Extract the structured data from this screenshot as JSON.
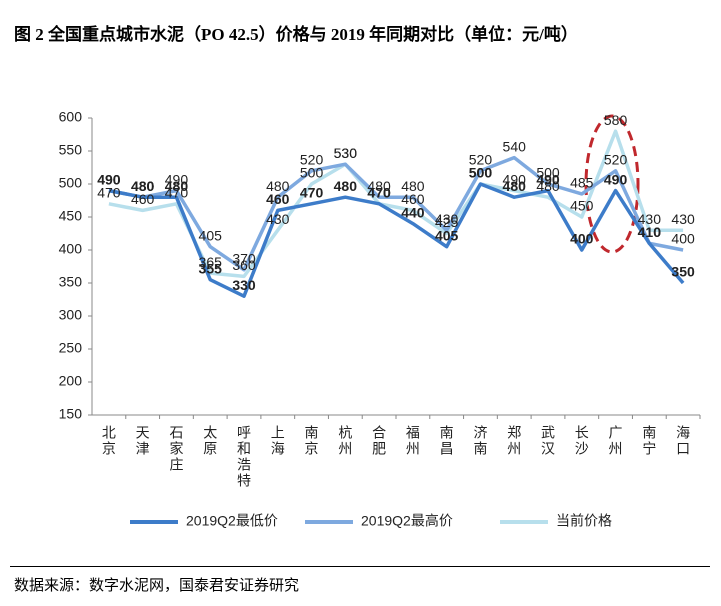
{
  "chart_data": {
    "type": "line",
    "title": "图 2 全国重点城市水泥（PO 42.5）价格与 2019 年同期对比（单位：元/吨）",
    "source": "数据来源：数字水泥网，国泰君安证券研究",
    "categories": [
      "北京",
      "天津",
      "石家庄",
      "太原",
      "呼和浩特",
      "上海",
      "南京",
      "杭州",
      "合肥",
      "福州",
      "南昌",
      "济南",
      "郑州",
      "武汉",
      "长沙",
      "广州",
      "南宁",
      "海口"
    ],
    "series": [
      {
        "name": "2019Q2最低价",
        "color": "#3d7cc9",
        "values": [
          490,
          480,
          480,
          355,
          330,
          460,
          470,
          480,
          470,
          440,
          405,
          500,
          480,
          490,
          400,
          490,
          410,
          350
        ]
      },
      {
        "name": "2019Q2最高价",
        "color": "#7ea9df",
        "values": [
          490,
          480,
          490,
          405,
          370,
          480,
          520,
          530,
          480,
          480,
          430,
          520,
          540,
          500,
          485,
          520,
          410,
          400
        ]
      },
      {
        "name": "当前价格",
        "color": "#b7dfec",
        "values": [
          470,
          460,
          470,
          365,
          360,
          430,
          500,
          530,
          470,
          460,
          425,
          500,
          490,
          480,
          450,
          580,
          430,
          430
        ]
      }
    ],
    "ylim": [
      150,
      600
    ],
    "yticks": [
      150,
      200,
      250,
      300,
      350,
      400,
      450,
      500,
      550,
      600
    ]
  }
}
